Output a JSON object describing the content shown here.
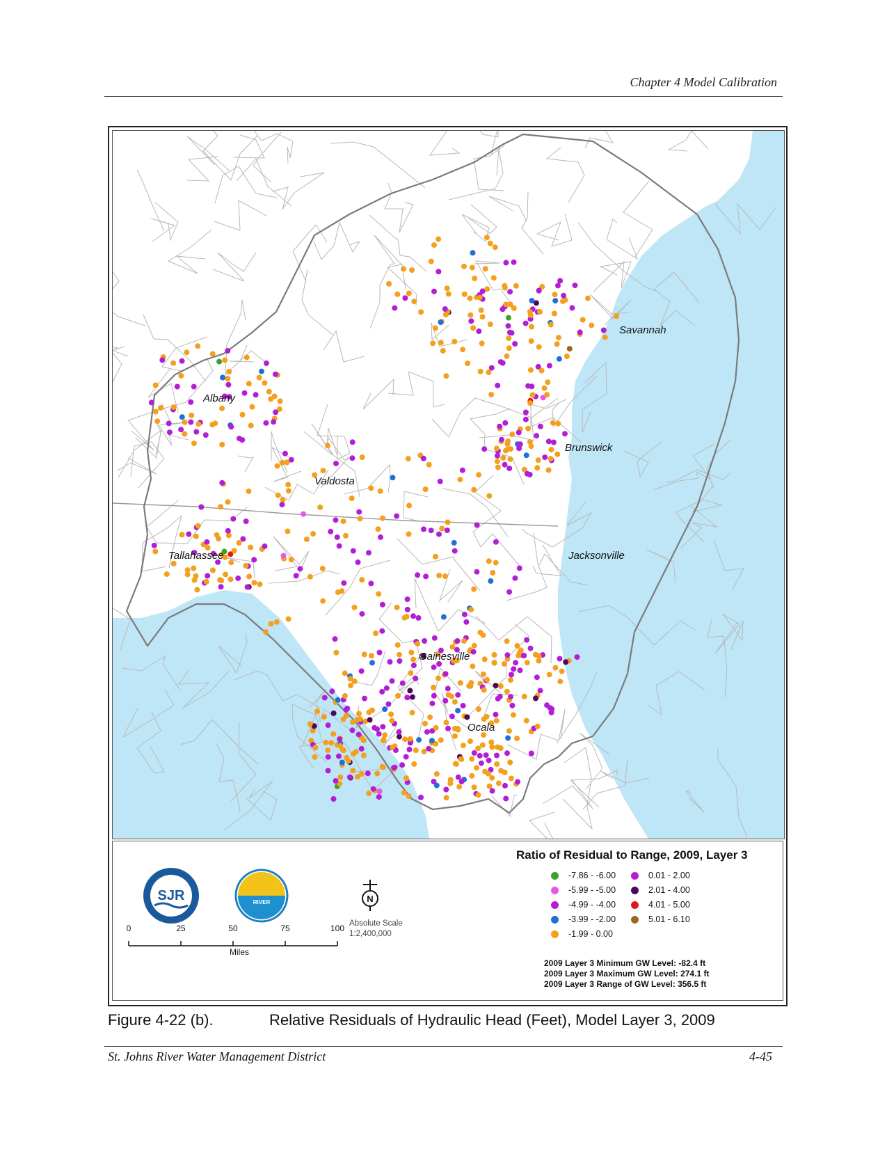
{
  "header": {
    "chapter": "Chapter 4 Model Calibration"
  },
  "map": {
    "city_labels": [
      "Savannah",
      "Albany",
      "Brunswick",
      "Valdosta",
      "Tallahassee",
      "Jacksonville",
      "Gainesville",
      "Ocala"
    ],
    "colors": {
      "water": "#bfe6f7",
      "land": "#ffffff",
      "county_line": "#b5b5b5",
      "boundary": "#7a7a7a"
    }
  },
  "legend": {
    "title": "Ratio of Residual to Range, 2009, Layer 3",
    "classes": [
      {
        "range": "-7.86 - -6.00",
        "color": "#3ca02c"
      },
      {
        "range": "-5.99 - -5.00",
        "color": "#ea55e6"
      },
      {
        "range": "-4.99 - -4.00",
        "color": "#b21ed6"
      },
      {
        "range": "-3.99 - -2.00",
        "color": "#1f6fd6"
      },
      {
        "range": "-1.99 - 0.00",
        "color": "#f2a01e"
      },
      {
        "range": "0.01 - 2.00",
        "color": "#b21ed6"
      },
      {
        "range": "2.01 - 4.00",
        "color": "#4a0a5c"
      },
      {
        "range": "4.01 - 5.00",
        "color": "#e01818"
      },
      {
        "range": "5.01 - 6.10",
        "color": "#a0641c"
      }
    ],
    "stats": [
      "2009 Layer 3 Minimum GW Level: -82.4  ft",
      "2009 Layer 3 Maximum GW Level: 274.1  ft",
      "2009 Layer 3 Range of GW Level: 356.5  ft"
    ]
  },
  "scale_bar": {
    "ticks": [
      "0",
      "25",
      "50",
      "75",
      "100"
    ],
    "units": "Miles",
    "absolute_scale_label": "Absolute Scale",
    "absolute_scale_value": "1:2,400,000"
  },
  "logos": {
    "sjr": {
      "mark": "SJR",
      "color": "#1a5a9c"
    },
    "srwmd": {
      "mark": "RIVER",
      "color": "#f2c318"
    }
  },
  "north_arrow": {
    "letter": "N"
  },
  "caption": {
    "figure_number": "Figure 4-22 (b).",
    "text": "Relative Residuals of Hydraulic Head (Feet), Model Layer 3, 2009"
  },
  "footer": {
    "left": "St. Johns River Water Management District",
    "right": "4-45"
  }
}
